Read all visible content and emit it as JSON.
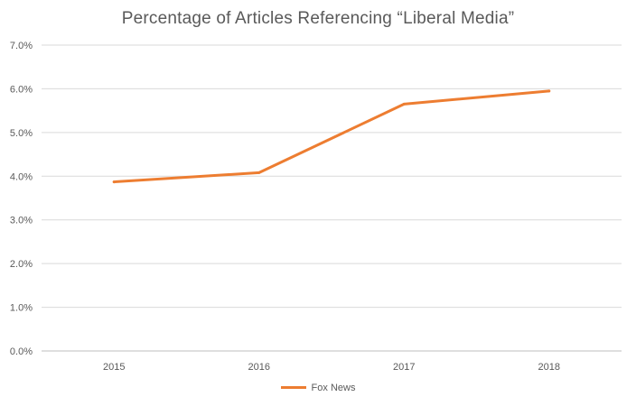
{
  "chart_data": {
    "type": "line",
    "title": "Percentage of  Articles Referencing “Liberal Media”",
    "categories": [
      "2015",
      "2016",
      "2017",
      "2018"
    ],
    "series": [
      {
        "name": "Fox News",
        "values": [
          0.0387,
          0.0408,
          0.0565,
          0.0595
        ],
        "color": "#ED7D31"
      }
    ],
    "ylim": [
      0,
      0.07
    ],
    "yticks": [
      "0.0%",
      "1.0%",
      "2.0%",
      "3.0%",
      "4.0%",
      "5.0%",
      "6.0%",
      "7.0%"
    ],
    "grid": true,
    "legend": "bottom",
    "xlabel": "",
    "ylabel": ""
  }
}
